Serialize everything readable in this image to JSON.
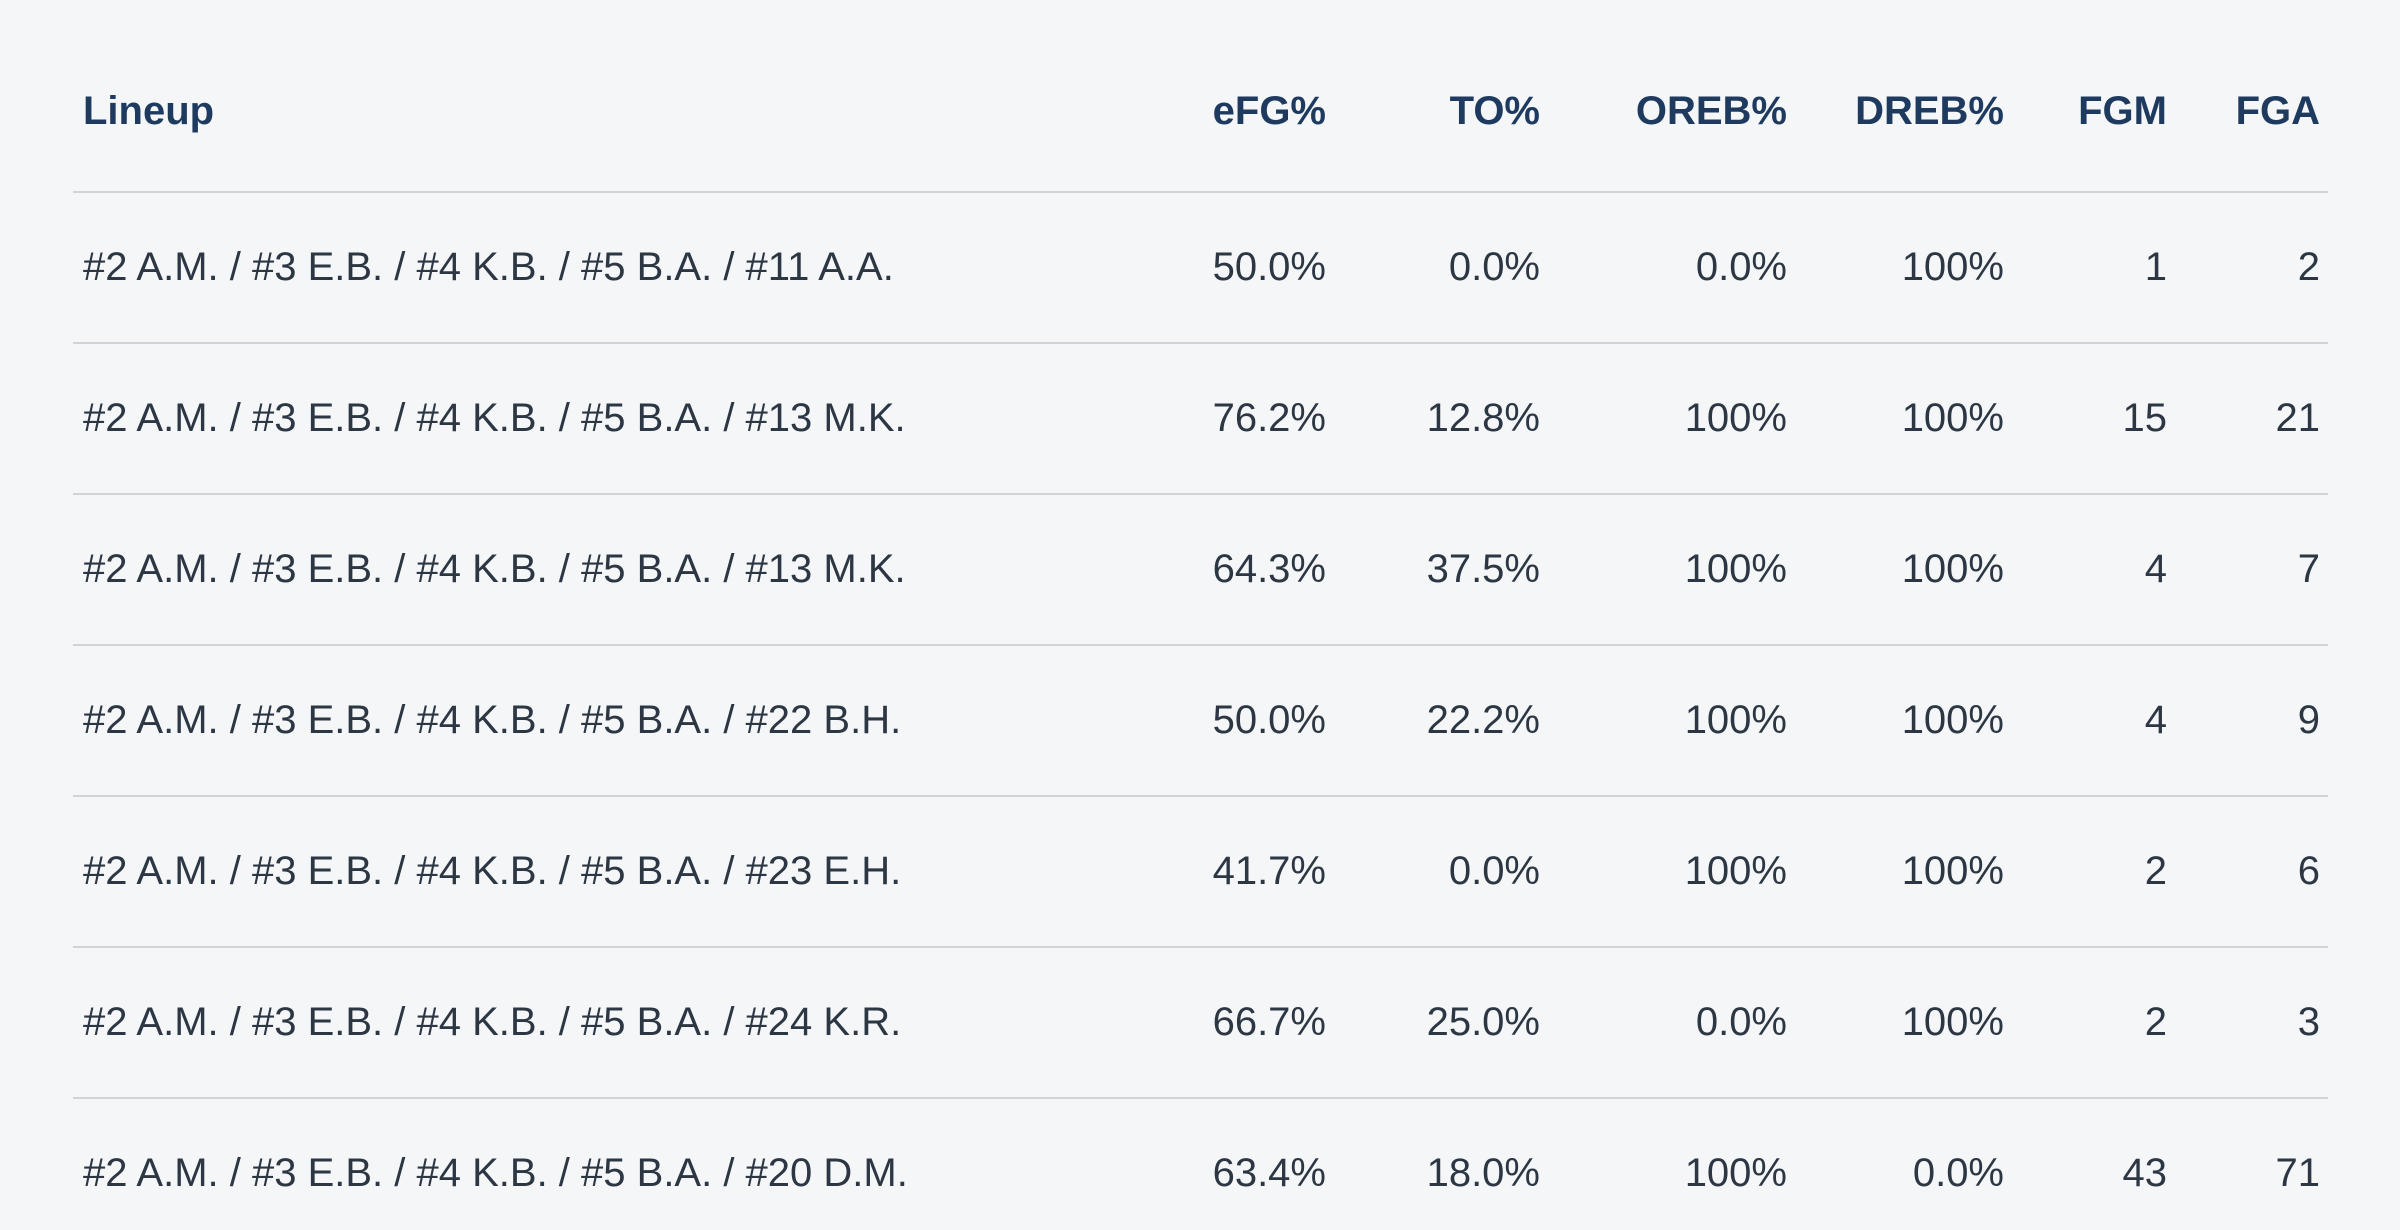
{
  "colors": {
    "background": "#f4f6f8",
    "header_text": "#1e3a5f",
    "body_text": "#2d3744",
    "divider": "#cfd4d9"
  },
  "table": {
    "columns": [
      {
        "key": "lineup",
        "label": "Lineup"
      },
      {
        "key": "efg",
        "label": "eFG%"
      },
      {
        "key": "to",
        "label": "TO%"
      },
      {
        "key": "oreb",
        "label": "OREB%"
      },
      {
        "key": "dreb",
        "label": "DREB%"
      },
      {
        "key": "fgm",
        "label": "FGM"
      },
      {
        "key": "fga",
        "label": "FGA"
      }
    ],
    "rows": [
      {
        "lineup": "#2 A.M. / #3 E.B. / #4 K.B. / #5 B.A. / #11 A.A.",
        "efg": "50.0%",
        "to": "0.0%",
        "oreb": "0.0%",
        "dreb": "100%",
        "fgm": "1",
        "fga": "2"
      },
      {
        "lineup": "#2 A.M. / #3 E.B. / #4 K.B. / #5 B.A. / #13 M.K.",
        "efg": "76.2%",
        "to": "12.8%",
        "oreb": "100%",
        "dreb": "100%",
        "fgm": "15",
        "fga": "21"
      },
      {
        "lineup": "#2 A.M. / #3 E.B. / #4 K.B. / #5 B.A. / #13 M.K.",
        "efg": "64.3%",
        "to": "37.5%",
        "oreb": "100%",
        "dreb": "100%",
        "fgm": "4",
        "fga": "7"
      },
      {
        "lineup": "#2 A.M. / #3 E.B. / #4 K.B. / #5 B.A. / #22 B.H.",
        "efg": "50.0%",
        "to": "22.2%",
        "oreb": "100%",
        "dreb": "100%",
        "fgm": "4",
        "fga": "9"
      },
      {
        "lineup": "#2 A.M. / #3 E.B. / #4 K.B. / #5 B.A. / #23 E.H.",
        "efg": "41.7%",
        "to": "0.0%",
        "oreb": "100%",
        "dreb": "100%",
        "fgm": "2",
        "fga": "6"
      },
      {
        "lineup": "#2 A.M. / #3 E.B. / #4 K.B. / #5 B.A. / #24 K.R.",
        "efg": "66.7%",
        "to": "25.0%",
        "oreb": "0.0%",
        "dreb": "100%",
        "fgm": "2",
        "fga": "3"
      },
      {
        "lineup": "#2 A.M. / #3 E.B. / #4 K.B. / #5 B.A. / #20 D.M.",
        "efg": "63.4%",
        "to": "18.0%",
        "oreb": "100%",
        "dreb": "0.0%",
        "fgm": "43",
        "fga": "71"
      }
    ]
  }
}
